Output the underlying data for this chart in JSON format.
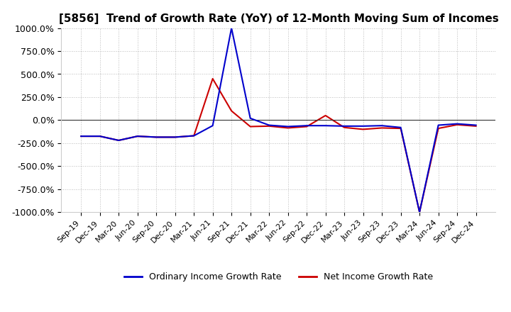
{
  "title": "[5856]  Trend of Growth Rate (YoY) of 12-Month Moving Sum of Incomes",
  "title_fontsize": 11,
  "background_color": "#ffffff",
  "grid_color": "#aaaaaa",
  "ylim": [
    -1000,
    1000
  ],
  "yticks": [
    -1000,
    -750,
    -500,
    -250,
    0,
    250,
    500,
    750,
    1000
  ],
  "ytick_labels": [
    "-1000.0%",
    "-750.0%",
    "-500.0%",
    "-250.0%",
    "0.0%",
    "250.0%",
    "500.0%",
    "750.0%",
    "1000.0%"
  ],
  "x_labels": [
    "Sep-19",
    "Dec-19",
    "Mar-20",
    "Jun-20",
    "Sep-20",
    "Dec-20",
    "Mar-21",
    "Jun-21",
    "Sep-21",
    "Dec-21",
    "Mar-22",
    "Jun-22",
    "Sep-22",
    "Dec-22",
    "Mar-23",
    "Jun-23",
    "Sep-23",
    "Dec-23",
    "Mar-24",
    "Jun-24",
    "Sep-24",
    "Dec-24"
  ],
  "ordinary_income": [
    -175,
    -175,
    -220,
    -175,
    -185,
    -185,
    -170,
    -60,
    1000,
    20,
    -55,
    -70,
    -60,
    -60,
    -65,
    -65,
    -60,
    -80,
    -1000,
    -55,
    -40,
    -55
  ],
  "net_income": [
    -175,
    -175,
    -220,
    -175,
    -185,
    -185,
    -170,
    450,
    100,
    -70,
    -65,
    -85,
    -70,
    50,
    -80,
    -100,
    -85,
    -90,
    -1000,
    -90,
    -50,
    -65
  ],
  "ordinary_color": "#0000cc",
  "net_color": "#cc0000",
  "line_width": 1.5,
  "ordinary_label": "Ordinary Income Growth Rate",
  "net_label": "Net Income Growth Rate"
}
